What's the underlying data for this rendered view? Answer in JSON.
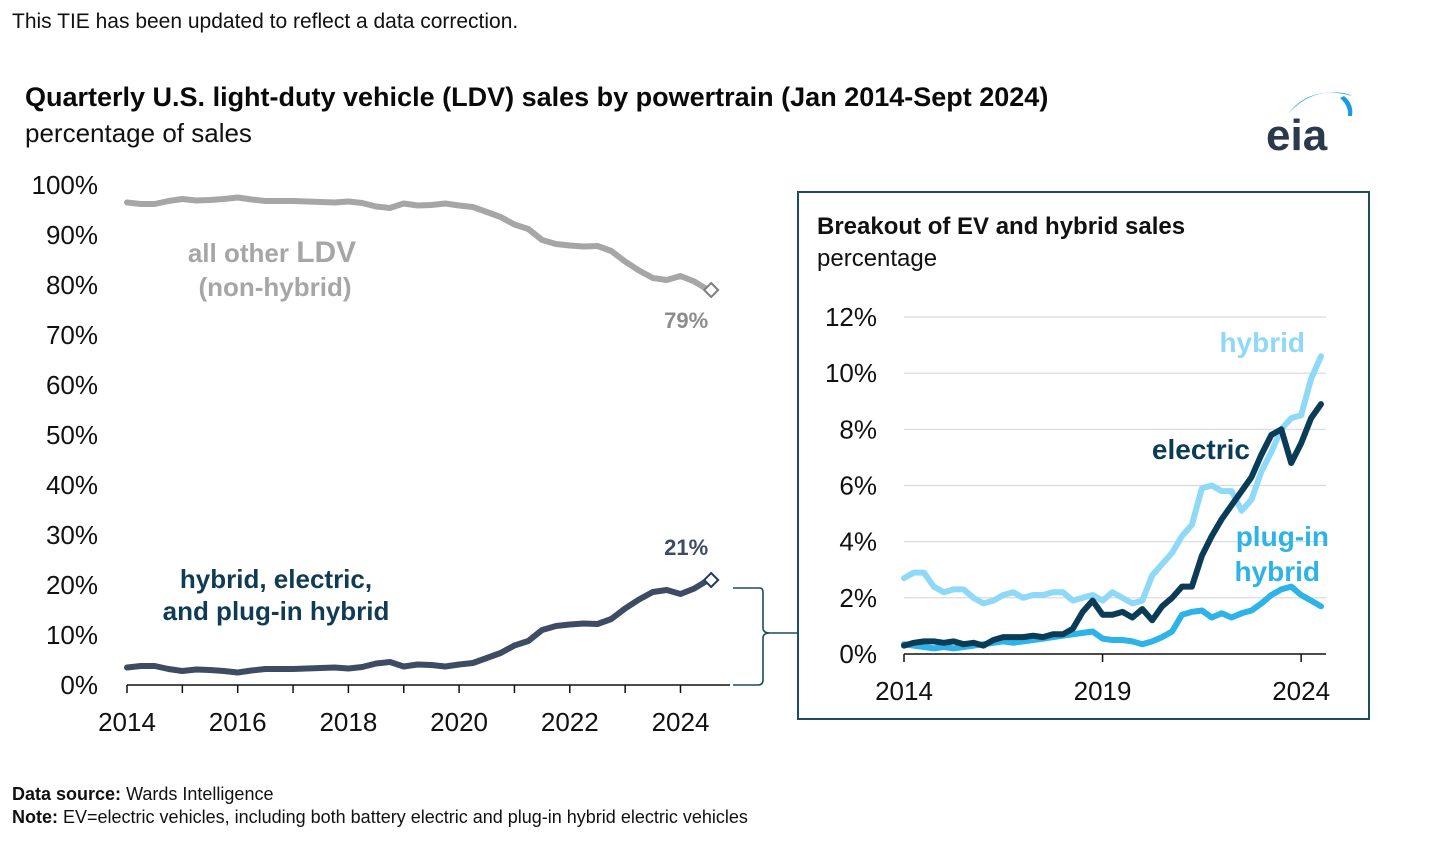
{
  "update_note": "This TIE has been updated to reflect a data correction.",
  "title": "Quarterly U.S. light-duty vehicle (LDV) sales by powertrain (Jan 2014-Sept 2024)",
  "subtitle": "percentage of sales",
  "logo_text": "eia",
  "footer": {
    "source_label": "Data source:",
    "source_text": "Wards Intelligence",
    "note_label": "Note:",
    "note_text": "EV=electric vehicles, including both battery electric and plug-in hybrid electric vehicles"
  },
  "colors": {
    "other": "#a6a6a6",
    "combined": "#3d4c63",
    "hybrid": "#8fd9f8",
    "electric": "#0b3c57",
    "plugin": "#2db3e8",
    "frame": "#1d4c5f",
    "logo_blue": "#1a9be0"
  },
  "chart_data": [
    {
      "type": "line",
      "title": "Quarterly U.S. light-duty vehicle (LDV) sales by powertrain (Jan 2014-Sept 2024)",
      "ylabel": "percentage of sales",
      "xlabel": "",
      "x_range": [
        2014,
        2024.75
      ],
      "ylim": [
        0,
        100
      ],
      "x_ticks": [
        "2014",
        "2016",
        "2018",
        "2020",
        "2022",
        "2024"
      ],
      "y_ticks": [
        "0%",
        "10%",
        "20%",
        "30%",
        "40%",
        "50%",
        "60%",
        "70%",
        "80%",
        "90%",
        "100%"
      ],
      "grid": false,
      "x": [
        2014.0,
        2014.25,
        2014.5,
        2014.75,
        2015.0,
        2015.25,
        2015.5,
        2015.75,
        2016.0,
        2016.25,
        2016.5,
        2016.75,
        2017.0,
        2017.25,
        2017.5,
        2017.75,
        2018.0,
        2018.25,
        2018.5,
        2018.75,
        2019.0,
        2019.25,
        2019.5,
        2019.75,
        2020.0,
        2020.25,
        2020.5,
        2020.75,
        2021.0,
        2021.25,
        2021.5,
        2021.75,
        2022.0,
        2022.25,
        2022.5,
        2022.75,
        2023.0,
        2023.25,
        2023.5,
        2023.75,
        2024.0,
        2024.25,
        2024.5
      ],
      "series": [
        {
          "name": "all other LDV (non-hybrid)",
          "values": [
            96.5,
            96.2,
            96.2,
            96.8,
            97.2,
            96.9,
            97.0,
            97.2,
            97.5,
            97.1,
            96.8,
            96.8,
            96.8,
            96.7,
            96.6,
            96.5,
            96.7,
            96.4,
            95.7,
            95.4,
            96.3,
            95.9,
            96.0,
            96.3,
            95.9,
            95.6,
            94.6,
            93.6,
            92.1,
            91.2,
            89.0,
            88.2,
            87.9,
            87.7,
            87.8,
            86.8,
            84.7,
            82.9,
            81.4,
            81.0,
            81.8,
            80.7,
            79.0
          ]
        },
        {
          "name": "hybrid, electric, and plug-in hybrid",
          "values": [
            3.5,
            3.8,
            3.8,
            3.2,
            2.8,
            3.1,
            3.0,
            2.8,
            2.5,
            2.9,
            3.2,
            3.2,
            3.2,
            3.3,
            3.4,
            3.5,
            3.3,
            3.6,
            4.3,
            4.6,
            3.7,
            4.1,
            4.0,
            3.7,
            4.1,
            4.4,
            5.4,
            6.4,
            7.9,
            8.8,
            11.0,
            11.8,
            12.1,
            12.3,
            12.2,
            13.2,
            15.3,
            17.1,
            18.6,
            19.0,
            18.2,
            19.3,
            21.0
          ]
        }
      ],
      "labels": {
        "other_line1": "all other",
        "other_line1b": "LDV",
        "other_line2": "(non-hybrid)",
        "combined_line1": "hybrid, electric,",
        "combined_line2": "and plug-in hybrid",
        "other_end_value": "79%",
        "combined_end_value": "21%"
      }
    },
    {
      "type": "line",
      "title": "Breakout of EV and hybrid sales",
      "ylabel": "percentage",
      "xlabel": "",
      "x_range": [
        2014,
        2024.5
      ],
      "ylim": [
        0,
        12
      ],
      "x_ticks": [
        "2014",
        "2019",
        "2024"
      ],
      "y_ticks": [
        "0%",
        "2%",
        "4%",
        "6%",
        "8%",
        "10%",
        "12%"
      ],
      "grid": true,
      "x": [
        2014.0,
        2014.25,
        2014.5,
        2014.75,
        2015.0,
        2015.25,
        2015.5,
        2015.75,
        2016.0,
        2016.25,
        2016.5,
        2016.75,
        2017.0,
        2017.25,
        2017.5,
        2017.75,
        2018.0,
        2018.25,
        2018.5,
        2018.75,
        2019.0,
        2019.25,
        2019.5,
        2019.75,
        2020.0,
        2020.25,
        2020.5,
        2020.75,
        2021.0,
        2021.25,
        2021.5,
        2021.75,
        2022.0,
        2022.25,
        2022.5,
        2022.75,
        2023.0,
        2023.25,
        2023.5,
        2023.75,
        2024.0,
        2024.25,
        2024.5
      ],
      "series": [
        {
          "name": "hybrid",
          "values": [
            2.7,
            2.9,
            2.9,
            2.4,
            2.2,
            2.3,
            2.3,
            2.0,
            1.8,
            1.9,
            2.1,
            2.2,
            2.0,
            2.1,
            2.1,
            2.2,
            2.2,
            1.9,
            2.0,
            2.1,
            1.9,
            2.2,
            2.0,
            1.8,
            1.9,
            2.8,
            3.2,
            3.6,
            4.2,
            4.6,
            5.9,
            6.0,
            5.8,
            5.8,
            5.1,
            5.5,
            6.5,
            7.2,
            8.0,
            8.4,
            8.5,
            9.8,
            10.6
          ]
        },
        {
          "name": "electric",
          "values": [
            0.3,
            0.4,
            0.45,
            0.45,
            0.4,
            0.45,
            0.35,
            0.4,
            0.3,
            0.5,
            0.6,
            0.6,
            0.6,
            0.65,
            0.6,
            0.7,
            0.7,
            0.9,
            1.5,
            1.9,
            1.4,
            1.4,
            1.5,
            1.3,
            1.6,
            1.2,
            1.7,
            2.0,
            2.4,
            2.4,
            3.5,
            4.2,
            4.8,
            5.3,
            5.8,
            6.3,
            7.1,
            7.8,
            8.0,
            6.8,
            7.5,
            8.4,
            8.9
          ]
        },
        {
          "name": "plug-in hybrid",
          "values": [
            0.35,
            0.3,
            0.25,
            0.2,
            0.25,
            0.2,
            0.25,
            0.3,
            0.35,
            0.4,
            0.45,
            0.4,
            0.45,
            0.5,
            0.55,
            0.6,
            0.65,
            0.7,
            0.75,
            0.8,
            0.55,
            0.5,
            0.5,
            0.45,
            0.35,
            0.45,
            0.6,
            0.8,
            1.4,
            1.5,
            1.55,
            1.3,
            1.45,
            1.3,
            1.45,
            1.55,
            1.8,
            2.1,
            2.3,
            2.4,
            2.1,
            1.9,
            1.7
          ]
        }
      ],
      "labels": {
        "hybrid": "hybrid",
        "electric": "electric",
        "plugin_line1": "plug-in",
        "plugin_line2": "hybrid"
      }
    }
  ]
}
